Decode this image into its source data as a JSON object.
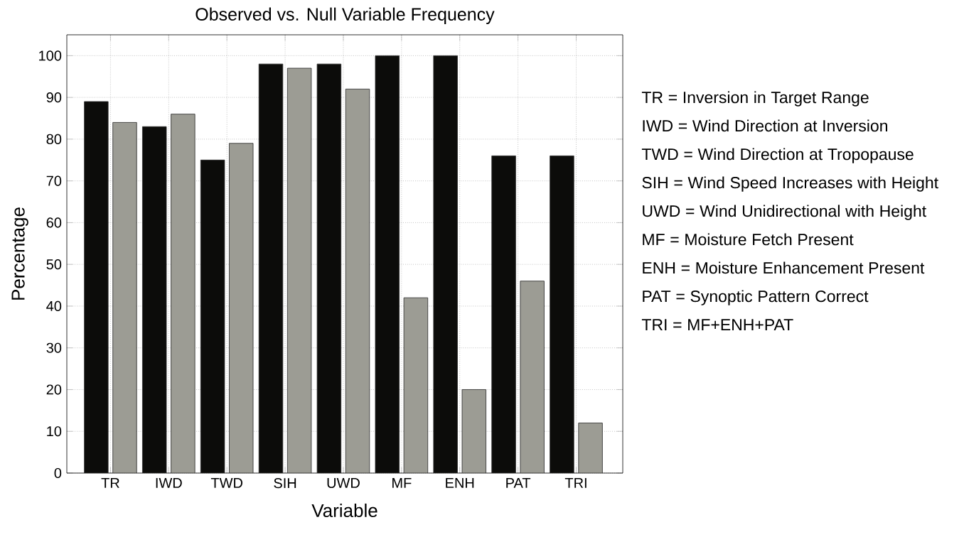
{
  "chart_data": {
    "type": "bar",
    "title": "Observed vs. Null Variable Frequency",
    "xlabel": "Variable",
    "ylabel": "Percentage",
    "categories": [
      "TR",
      "IWD",
      "TWD",
      "SIH",
      "UWD",
      "MF",
      "ENH",
      "PAT",
      "TRI"
    ],
    "series": [
      {
        "color": "#0c0c0a",
        "values": [
          89,
          83,
          75,
          98,
          98,
          100,
          100,
          76,
          76
        ]
      },
      {
        "color": "#9c9c94",
        "values": [
          84,
          86,
          79,
          97,
          92,
          42,
          20,
          46,
          12
        ]
      }
    ],
    "ylim": [
      0,
      105
    ],
    "yticks": [
      0,
      10,
      20,
      30,
      40,
      50,
      60,
      70,
      80,
      90,
      100
    ],
    "grid": true,
    "annotations": [
      "TR = Inversion in Target Range",
      "IWD = Wind Direction at Inversion",
      "TWD = Wind Direction at Tropopause",
      "SIH = Wind Speed Increases with Height",
      "UWD = Wind Unidirectional with Height",
      "MF = Moisture Fetch Present",
      "ENH = Moisture Enhancement Present",
      "PAT = Synoptic Pattern Correct",
      "TRI = MF+ENH+PAT"
    ]
  }
}
